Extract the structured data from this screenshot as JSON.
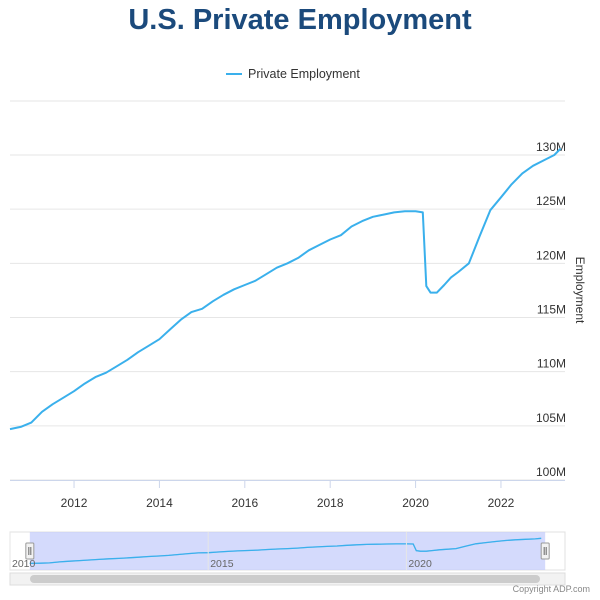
{
  "title": "U.S. Private Employment",
  "copyright": "Copyright ADP.com",
  "colors": {
    "series": "#3ab0ec",
    "title": "#1b4a7c",
    "grid": "#e6e6e6",
    "navigator_mask": "#c6cdfb"
  },
  "chart_data": {
    "type": "line",
    "title": "U.S. Private Employment",
    "ylabel": "Employment",
    "xlabel": "",
    "x_unit": "year",
    "xlim": [
      2010.5,
      2023.5
    ],
    "ylim": [
      100,
      130
    ],
    "x_ticks": [
      2012,
      2014,
      2016,
      2018,
      2020,
      2022
    ],
    "x_tick_labels": [
      "2012",
      "2014",
      "2016",
      "2018",
      "2020",
      "2022"
    ],
    "y_ticks": [
      100,
      105,
      110,
      115,
      120,
      125,
      130
    ],
    "y_tick_labels": [
      "100M",
      "105M",
      "110M",
      "115M",
      "120M",
      "125M",
      "130M"
    ],
    "legend": "top-center",
    "grid": "horizontal",
    "series": [
      {
        "name": "Private Employment",
        "color": "#3ab0ec",
        "x": [
          2010.5,
          2010.75,
          2011.0,
          2011.25,
          2011.5,
          2011.75,
          2012.0,
          2012.25,
          2012.5,
          2012.75,
          2013.0,
          2013.25,
          2013.5,
          2013.75,
          2014.0,
          2014.25,
          2014.5,
          2014.75,
          2015.0,
          2015.25,
          2015.5,
          2015.75,
          2016.0,
          2016.25,
          2016.5,
          2016.75,
          2017.0,
          2017.25,
          2017.5,
          2017.75,
          2018.0,
          2018.25,
          2018.5,
          2018.75,
          2019.0,
          2019.25,
          2019.5,
          2019.75,
          2019.9,
          2020.0,
          2020.17,
          2020.25,
          2020.35,
          2020.5,
          2020.67,
          2020.83,
          2021.0,
          2021.25,
          2021.5,
          2021.75,
          2022.0,
          2022.25,
          2022.5,
          2022.75,
          2023.0,
          2023.25,
          2023.4
        ],
        "y": [
          104.7,
          104.9,
          105.3,
          106.3,
          107.0,
          107.6,
          108.2,
          108.9,
          109.5,
          109.9,
          110.5,
          111.1,
          111.8,
          112.4,
          113.0,
          113.9,
          114.8,
          115.5,
          115.8,
          116.5,
          117.1,
          117.6,
          118.0,
          118.4,
          119.0,
          119.6,
          120.0,
          120.5,
          121.2,
          121.7,
          122.2,
          122.6,
          123.4,
          123.9,
          124.3,
          124.5,
          124.7,
          124.8,
          124.8,
          124.8,
          124.7,
          117.9,
          117.3,
          117.3,
          118.0,
          118.7,
          119.2,
          120.0,
          122.5,
          124.9,
          126.1,
          127.3,
          128.3,
          129.0,
          129.5,
          130.0,
          130.6
        ]
      }
    ],
    "navigator": {
      "x_labels": [
        "2010",
        "2015",
        "2020"
      ],
      "selected_range": [
        2010.5,
        2023.5
      ]
    }
  }
}
